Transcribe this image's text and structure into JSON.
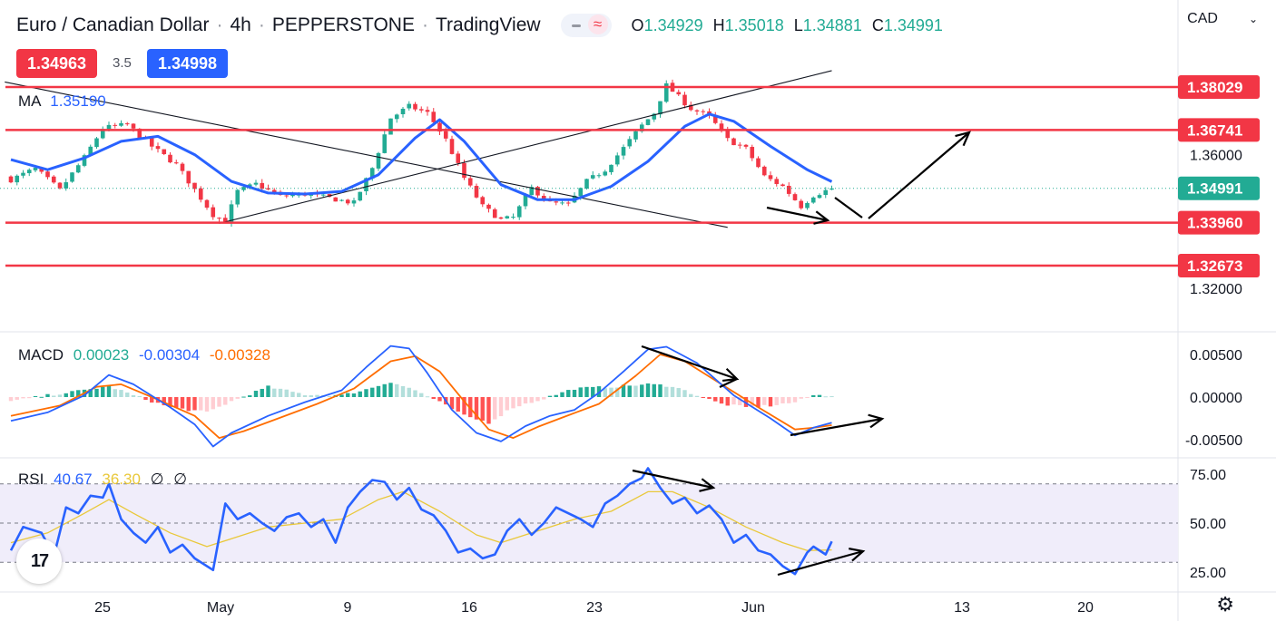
{
  "header": {
    "symbol": "Euro / Canadian Dollar",
    "interval": "4h",
    "broker": "PEPPERSTONE",
    "platform": "TradingView",
    "ohlc": {
      "o_label": "O",
      "o": "1.34929",
      "h_label": "H",
      "h": "1.35018",
      "l_label": "L",
      "l": "1.34881",
      "c_label": "C",
      "c": "1.34991"
    }
  },
  "quote": {
    "sell": "1.34963",
    "spread": "3.5",
    "buy": "1.34998"
  },
  "currency_label": "CAD",
  "colors": {
    "up": "#22ab94",
    "down": "#f23645",
    "ma": "#2962ff",
    "macd": "#2962ff",
    "signal": "#ff6d00",
    "rsi": "#2962ff",
    "rsi_ma": "#e9c83a",
    "hist_up": "#22ab94",
    "hist_up_light": "#b2dfdb",
    "hist_down": "#ff5252",
    "hist_down_light": "#ffcdd2",
    "level": "#f23645",
    "last_price": "#22ab94",
    "rsi_band": "#f0edfa"
  },
  "chart_data": [
    {
      "type": "candlestick",
      "pane": "price",
      "indicator_label": "MA",
      "indicator_value": "1.35190",
      "x_labels": [
        "25",
        "May",
        "9",
        "16",
        "23",
        "Jun",
        "13",
        "20"
      ],
      "y_ticks": [
        "1.36000",
        "1.32000"
      ],
      "ylim": [
        1.3135,
        1.3867
      ],
      "horizontal_levels": [
        "1.38029",
        "1.36741",
        "1.33960",
        "1.32673"
      ],
      "last_price": "1.34991",
      "candles_count": 135,
      "close_path": [
        [
          0,
          1.3525
        ],
        [
          4,
          1.3558
        ],
        [
          8,
          1.3494
        ],
        [
          12,
          1.3592
        ],
        [
          15,
          1.368
        ],
        [
          19,
          1.369
        ],
        [
          23,
          1.3625
        ],
        [
          27,
          1.357
        ],
        [
          31,
          1.347
        ],
        [
          33,
          1.342
        ],
        [
          35,
          1.34
        ],
        [
          37,
          1.349
        ],
        [
          40,
          1.3512
        ],
        [
          44,
          1.3475
        ],
        [
          48,
          1.3482
        ],
        [
          52,
          1.347
        ],
        [
          56,
          1.3455
        ],
        [
          59,
          1.356
        ],
        [
          62,
          1.371
        ],
        [
          65,
          1.3745
        ],
        [
          68,
          1.3725
        ],
        [
          71,
          1.3645
        ],
        [
          74,
          1.353
        ],
        [
          77,
          1.3445
        ],
        [
          80,
          1.3405
        ],
        [
          82,
          1.3412
        ],
        [
          85,
          1.35
        ],
        [
          88,
          1.3455
        ],
        [
          91,
          1.345
        ],
        [
          94,
          1.352
        ],
        [
          97,
          1.3555
        ],
        [
          100,
          1.362
        ],
        [
          103,
          1.3688
        ],
        [
          105,
          1.3725
        ],
        [
          107,
          1.3808
        ],
        [
          111,
          1.3738
        ],
        [
          114,
          1.3715
        ],
        [
          117,
          1.3645
        ],
        [
          120,
          1.3618
        ],
        [
          123,
          1.3535
        ],
        [
          126,
          1.3505
        ],
        [
          129,
          1.3445
        ],
        [
          131,
          1.3478
        ],
        [
          134,
          1.3499
        ]
      ],
      "ma_path": [
        [
          0,
          1.3585
        ],
        [
          6,
          1.3555
        ],
        [
          12,
          1.359
        ],
        [
          18,
          1.364
        ],
        [
          24,
          1.3655
        ],
        [
          30,
          1.36
        ],
        [
          36,
          1.352
        ],
        [
          42,
          1.3485
        ],
        [
          48,
          1.3482
        ],
        [
          54,
          1.349
        ],
        [
          60,
          1.354
        ],
        [
          66,
          1.365
        ],
        [
          70,
          1.3705
        ],
        [
          74,
          1.364
        ],
        [
          80,
          1.351
        ],
        [
          86,
          1.3465
        ],
        [
          92,
          1.3465
        ],
        [
          98,
          1.3505
        ],
        [
          104,
          1.358
        ],
        [
          110,
          1.3685
        ],
        [
          114,
          1.3722
        ],
        [
          118,
          1.37
        ],
        [
          124,
          1.3625
        ],
        [
          130,
          1.3555
        ],
        [
          134,
          1.3519
        ]
      ],
      "trendlines": [
        {
          "from": [
            -1,
            1.3818
          ],
          "to": [
            117,
            1.3382
          ]
        },
        {
          "from": [
            34,
            1.3394
          ],
          "to": [
            134,
            1.3852
          ]
        }
      ],
      "annotations": [
        "arrow-down-forecast",
        "arrow-up-forecast"
      ]
    },
    {
      "type": "line",
      "pane": "macd",
      "title": "MACD",
      "values_shown": [
        "0.00023",
        "-0.00304",
        "-0.00328"
      ],
      "y_ticks": [
        "0.00500",
        "0.00000",
        "-0.00500"
      ],
      "ylim": [
        -0.0073,
        0.0078
      ],
      "series": [
        {
          "name": "MACD",
          "color": "#2962ff",
          "points": [
            [
              0,
              -0.0028
            ],
            [
              6,
              -0.0018
            ],
            [
              12,
              0.0002
            ],
            [
              16,
              0.0026
            ],
            [
              20,
              0.0015
            ],
            [
              26,
              -0.0012
            ],
            [
              30,
              -0.0032
            ],
            [
              33,
              -0.0058
            ],
            [
              36,
              -0.0042
            ],
            [
              42,
              -0.0022
            ],
            [
              48,
              -0.0006
            ],
            [
              54,
              0.0008
            ],
            [
              58,
              0.0035
            ],
            [
              62,
              0.006
            ],
            [
              65,
              0.0057
            ],
            [
              68,
              0.0028
            ],
            [
              72,
              -0.0015
            ],
            [
              76,
              -0.0042
            ],
            [
              80,
              -0.0052
            ],
            [
              84,
              -0.0034
            ],
            [
              88,
              -0.0022
            ],
            [
              92,
              -0.0015
            ],
            [
              96,
              0.0005
            ],
            [
              100,
              0.003
            ],
            [
              104,
              0.0056
            ],
            [
              107,
              0.0059
            ],
            [
              112,
              0.004
            ],
            [
              118,
              0.0002
            ],
            [
              124,
              -0.0025
            ],
            [
              128,
              -0.0045
            ],
            [
              131,
              -0.0036
            ],
            [
              134,
              -0.003
            ]
          ]
        },
        {
          "name": "Signal",
          "color": "#ff6d00",
          "points": [
            [
              0,
              -0.0022
            ],
            [
              8,
              -0.001
            ],
            [
              14,
              0.0012
            ],
            [
              18,
              0.0015
            ],
            [
              24,
              -0.0003
            ],
            [
              30,
              -0.0022
            ],
            [
              34,
              -0.0048
            ],
            [
              38,
              -0.004
            ],
            [
              44,
              -0.0024
            ],
            [
              50,
              -0.0008
            ],
            [
              56,
              0.001
            ],
            [
              62,
              0.0042
            ],
            [
              66,
              0.0048
            ],
            [
              70,
              0.003
            ],
            [
              74,
              -0.0005
            ],
            [
              78,
              -0.0038
            ],
            [
              82,
              -0.0048
            ],
            [
              86,
              -0.0035
            ],
            [
              90,
              -0.0024
            ],
            [
              96,
              -0.0008
            ],
            [
              102,
              0.0025
            ],
            [
              106,
              0.005
            ],
            [
              110,
              0.0042
            ],
            [
              116,
              0.0015
            ],
            [
              122,
              -0.0012
            ],
            [
              128,
              -0.0038
            ],
            [
              131,
              -0.0036
            ],
            [
              134,
              -0.0033
            ]
          ]
        }
      ],
      "histogram": [
        [
          0,
          -0.0005
        ],
        [
          6,
          0.0002
        ],
        [
          12,
          0.0008
        ],
        [
          16,
          0.0013
        ],
        [
          20,
          0.0002
        ],
        [
          26,
          -0.0012
        ],
        [
          32,
          -0.0018
        ],
        [
          36,
          -0.0005
        ],
        [
          42,
          0.0012
        ],
        [
          48,
          0.0003
        ],
        [
          54,
          0.0002
        ],
        [
          58,
          0.0009
        ],
        [
          62,
          0.0018
        ],
        [
          66,
          0.0008
        ],
        [
          70,
          -0.0006
        ],
        [
          74,
          -0.0022
        ],
        [
          78,
          -0.003
        ],
        [
          82,
          -0.0012
        ],
        [
          86,
          -0.0004
        ],
        [
          92,
          0.001
        ],
        [
          98,
          0.0012
        ],
        [
          104,
          0.0015
        ],
        [
          108,
          0.0013
        ],
        [
          112,
          0.0002
        ],
        [
          116,
          -0.0008
        ],
        [
          120,
          -0.0012
        ],
        [
          124,
          -0.001
        ],
        [
          128,
          -0.0006
        ],
        [
          131,
          0.0002
        ],
        [
          134,
          0.0002
        ]
      ],
      "annotations": [
        "divergence-arrow-down",
        "divergence-arrow-up"
      ]
    },
    {
      "type": "line",
      "pane": "rsi",
      "title": "RSI",
      "values_shown": [
        "40.67",
        "36.30",
        "∅",
        "∅"
      ],
      "y_ticks": [
        "75.00",
        "50.00",
        "25.00"
      ],
      "ylim": [
        20,
        82
      ],
      "band": [
        30,
        70
      ],
      "series": [
        {
          "name": "RSI",
          "color": "#2962ff",
          "points": [
            [
              0,
              36
            ],
            [
              2,
              48
            ],
            [
              5,
              45
            ],
            [
              7,
              33
            ],
            [
              9,
              58
            ],
            [
              11,
              55
            ],
            [
              13,
              64
            ],
            [
              15,
              63
            ],
            [
              16,
              70
            ],
            [
              18,
              52
            ],
            [
              20,
              45
            ],
            [
              22,
              40
            ],
            [
              24,
              48
            ],
            [
              26,
              35
            ],
            [
              28,
              39
            ],
            [
              30,
              32
            ],
            [
              33,
              26
            ],
            [
              35,
              60
            ],
            [
              37,
              52
            ],
            [
              39,
              55
            ],
            [
              41,
              50
            ],
            [
              43,
              46
            ],
            [
              45,
              53
            ],
            [
              47,
              55
            ],
            [
              49,
              48
            ],
            [
              51,
              52
            ],
            [
              53,
              40
            ],
            [
              55,
              58
            ],
            [
              57,
              66
            ],
            [
              59,
              72
            ],
            [
              61,
              71
            ],
            [
              63,
              62
            ],
            [
              65,
              68
            ],
            [
              67,
              57
            ],
            [
              69,
              54
            ],
            [
              71,
              46
            ],
            [
              73,
              35
            ],
            [
              75,
              37
            ],
            [
              77,
              32
            ],
            [
              79,
              34
            ],
            [
              81,
              46
            ],
            [
              83,
              52
            ],
            [
              85,
              44
            ],
            [
              87,
              50
            ],
            [
              89,
              58
            ],
            [
              91,
              55
            ],
            [
              93,
              52
            ],
            [
              95,
              48
            ],
            [
              97,
              60
            ],
            [
              99,
              64
            ],
            [
              101,
              70
            ],
            [
              103,
              73
            ],
            [
              104,
              78
            ],
            [
              106,
              68
            ],
            [
              108,
              60
            ],
            [
              110,
              63
            ],
            [
              112,
              55
            ],
            [
              114,
              59
            ],
            [
              116,
              52
            ],
            [
              118,
              40
            ],
            [
              120,
              44
            ],
            [
              122,
              36
            ],
            [
              124,
              34
            ],
            [
              126,
              28
            ],
            [
              128,
              24
            ],
            [
              130,
              35
            ],
            [
              131,
              38
            ],
            [
              133,
              34
            ],
            [
              134,
              40.67
            ]
          ]
        },
        {
          "name": "RSI-based MA",
          "color": "#e9c83a",
          "points": [
            [
              0,
              40
            ],
            [
              6,
              45
            ],
            [
              12,
              55
            ],
            [
              16,
              62
            ],
            [
              20,
              55
            ],
            [
              26,
              45
            ],
            [
              32,
              38
            ],
            [
              36,
              42
            ],
            [
              42,
              48
            ],
            [
              48,
              50
            ],
            [
              54,
              52
            ],
            [
              60,
              62
            ],
            [
              64,
              66
            ],
            [
              70,
              56
            ],
            [
              76,
              44
            ],
            [
              80,
              40
            ],
            [
              86,
              46
            ],
            [
              92,
              52
            ],
            [
              98,
              56
            ],
            [
              104,
              66
            ],
            [
              108,
              66
            ],
            [
              114,
              58
            ],
            [
              120,
              48
            ],
            [
              126,
              40
            ],
            [
              130,
              36
            ],
            [
              134,
              36.3
            ]
          ]
        }
      ],
      "annotations": [
        "rsi-arrow-down",
        "rsi-arrow-up"
      ]
    }
  ]
}
